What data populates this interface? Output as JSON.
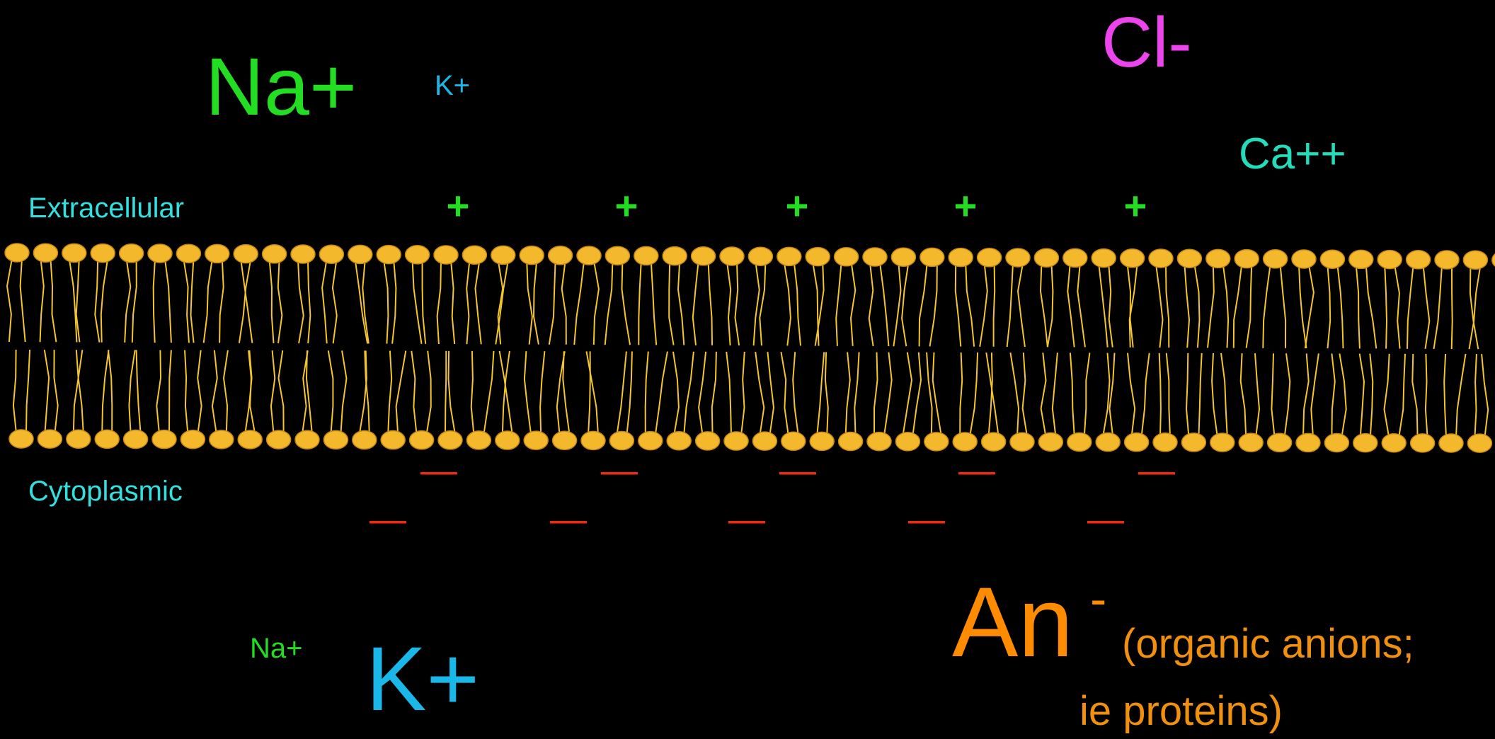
{
  "labels": {
    "extracellular": "Extracellular",
    "cytoplasmic": "Cytoplasmic"
  },
  "ions": {
    "na_out": "Na+",
    "k_out": "K+",
    "cl_out": "Cl-",
    "ca_out": "Ca++",
    "na_in": "Na+",
    "k_in": "K+",
    "an_in": "An",
    "an_charge": "-",
    "an_note_1": "(organic anions;",
    "an_note_2": "ie proteins)"
  },
  "charges": {
    "outside": [
      "+",
      "+",
      "+",
      "+",
      "+"
    ],
    "inside_row_1": [
      "—",
      "—",
      "—",
      "—",
      "—"
    ],
    "inside_row_2": [
      "—",
      "—",
      "—",
      "—",
      "—"
    ]
  }
}
